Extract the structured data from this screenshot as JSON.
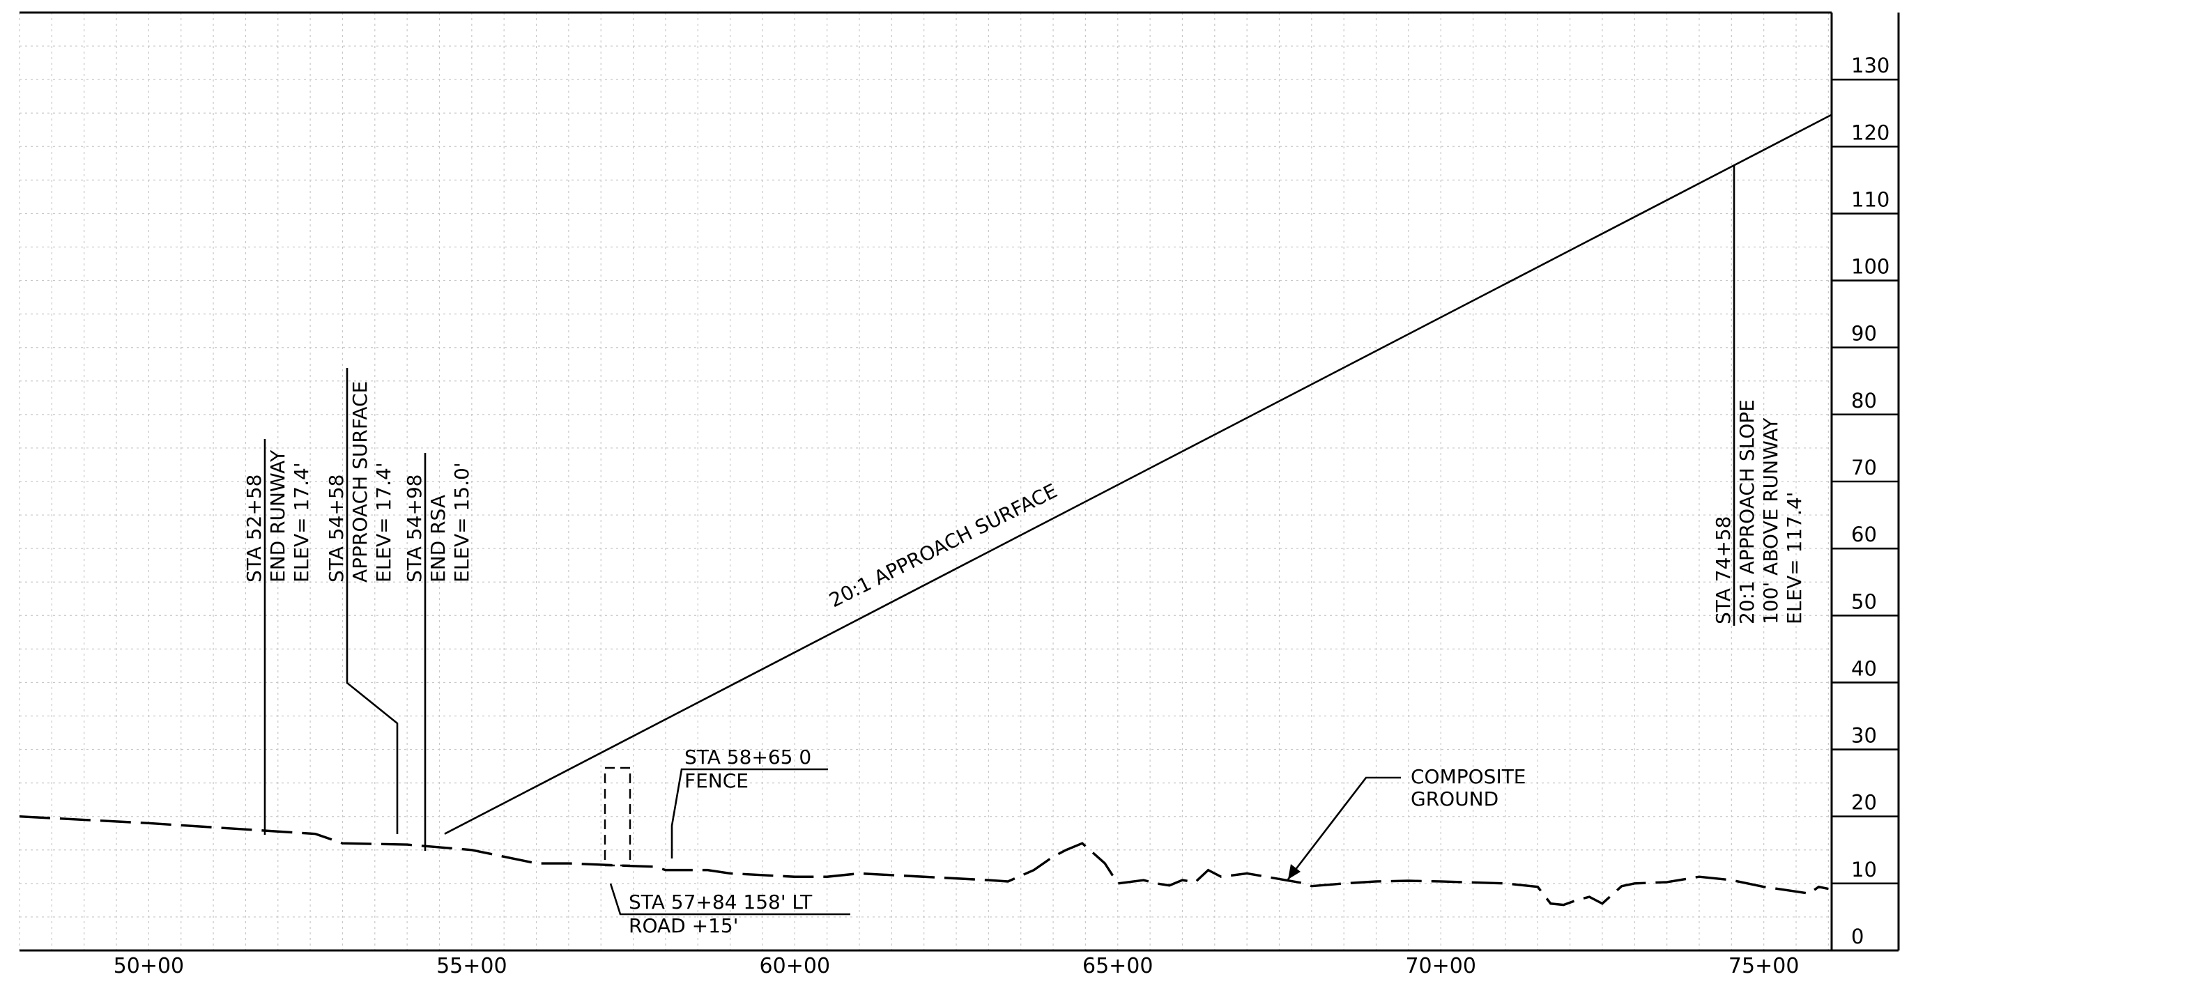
{
  "chart_data": {
    "type": "line",
    "x_ticks": [
      "50+00",
      "55+00",
      "60+00",
      "65+00",
      "70+00",
      "75+00"
    ],
    "x_tick_values": [
      5000,
      5500,
      6000,
      6500,
      7000,
      7500
    ],
    "xlim": [
      4800,
      7605
    ],
    "y_ticks": [
      "0",
      "10",
      "20",
      "30",
      "40",
      "50",
      "60",
      "70",
      "80",
      "90",
      "100",
      "110",
      "120",
      "130"
    ],
    "ylim": [
      0,
      140
    ],
    "grid": true,
    "series": [
      {
        "name": "COMPOSITE GROUND",
        "x": [
          4800,
          5000,
          5258,
          5300,
          5400,
          5450,
          5500,
          5550,
          5600,
          5650,
          5700,
          5750,
          5784,
          5800,
          5865,
          5900,
          6000,
          6050,
          6100,
          6200,
          6300,
          6330,
          6370,
          6400,
          6420,
          6445,
          6480,
          6500,
          6540,
          6560,
          6580,
          6600,
          6620,
          6640,
          6660,
          6700,
          6760,
          6790,
          6800,
          6850,
          6900,
          6950,
          7000,
          7100,
          7150,
          7170,
          7190,
          7210,
          7230,
          7250,
          7280,
          7300,
          7350,
          7400,
          7450,
          7500,
          7550,
          7570,
          7585,
          7600
        ],
        "y": [
          20,
          19,
          17.4,
          16,
          15.8,
          15.4,
          15,
          14,
          13,
          13,
          12.8,
          12.6,
          12.5,
          12,
          12,
          11.5,
          11,
          11,
          11.5,
          11,
          10.5,
          10.3,
          12,
          14,
          15,
          16,
          13,
          10,
          10.5,
          10,
          9.7,
          10.5,
          10.2,
          12,
          11,
          11.5,
          10.5,
          10,
          9.6,
          10,
          10.3,
          10.4,
          10.3,
          10,
          9.5,
          7,
          6.8,
          7.5,
          8,
          7,
          9.6,
          10,
          10.2,
          11,
          10.5,
          9.5,
          8.8,
          8.5,
          9.5,
          9.2
        ]
      },
      {
        "name": "20:1 APPROACH SURFACE",
        "x": [
          5458,
          7605
        ],
        "y": [
          17.4,
          124.75
        ]
      }
    ],
    "annotations": [
      {
        "label": "20:1 APPROACH SURFACE"
      },
      {
        "lines": [
          "STA 52+58",
          "END RUNWAY",
          "ELEV= 17.4'"
        ]
      },
      {
        "lines": [
          "STA 54+58",
          "APPROACH SURFACE",
          "ELEV= 17.4'"
        ]
      },
      {
        "lines": [
          "STA 54+98",
          "END RSA",
          "ELEV= 15.0'"
        ]
      },
      {
        "lines": [
          "STA 58+65 0",
          "FENCE"
        ]
      },
      {
        "lines": [
          "STA 57+84 158' LT",
          "ROAD +15'"
        ]
      },
      {
        "lines": [
          "COMPOSITE",
          "GROUND"
        ]
      },
      {
        "lines": [
          "STA 74+58",
          "20:1 APPROACH SLOPE",
          "100' ABOVE RUNWAY",
          "ELEV= 117.4'"
        ]
      }
    ]
  }
}
